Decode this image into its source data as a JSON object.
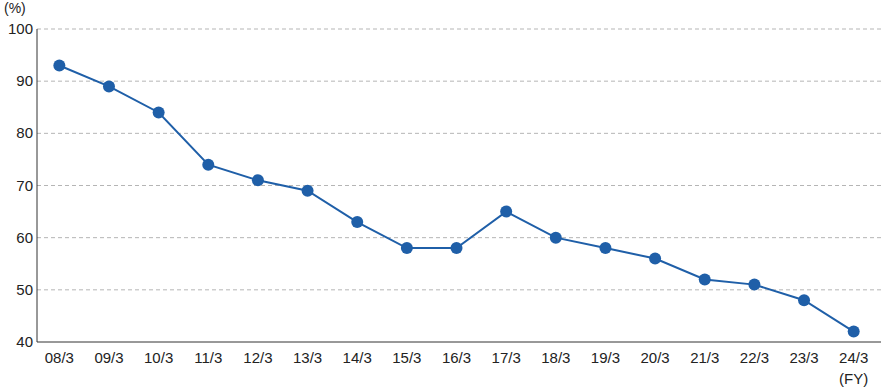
{
  "chart_data": {
    "type": "line",
    "y_label": "(%)",
    "x_label": "(FY)",
    "categories": [
      "08/3",
      "09/3",
      "10/3",
      "11/3",
      "12/3",
      "13/3",
      "14/3",
      "15/3",
      "16/3",
      "17/3",
      "18/3",
      "19/3",
      "20/3",
      "21/3",
      "22/3",
      "23/3",
      "24/3"
    ],
    "values": [
      93,
      89,
      84,
      74,
      71,
      69,
      63,
      58,
      58,
      65,
      60,
      58,
      56,
      52,
      51,
      48,
      42
    ],
    "color": "#1f5fa8",
    "marker": "circle",
    "ylim": [
      40,
      100
    ],
    "yticks": [
      40,
      50,
      60,
      70,
      80,
      90,
      100
    ],
    "grid": true
  }
}
